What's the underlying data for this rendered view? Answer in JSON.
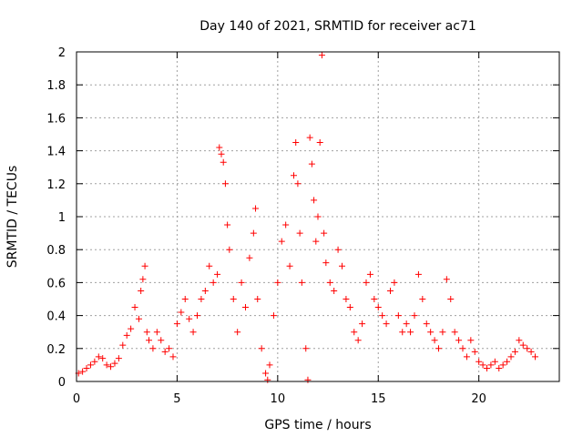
{
  "chart_data": {
    "type": "scatter",
    "title": "Day 140 of 2021, SRMTID for receiver ac71",
    "xlabel": "GPS time / hours",
    "ylabel": "SRMTID / TECUs",
    "xlim": [
      0,
      24
    ],
    "ylim": [
      0,
      2
    ],
    "xticks": [
      0,
      5,
      10,
      15,
      20
    ],
    "xtick_labels": [
      "0",
      "5",
      "10",
      "15",
      "20"
    ],
    "yticks": [
      0,
      0.2,
      0.4,
      0.6,
      0.8,
      1,
      1.2,
      1.4,
      1.6,
      1.8,
      2
    ],
    "ytick_labels": [
      "0",
      "0.2",
      "0.4",
      "0.6",
      "0.8",
      "1",
      "1.2",
      "1.4",
      "1.6",
      "1.8",
      "2"
    ],
    "grid": true,
    "marker": "+",
    "marker_color": "#ff0000",
    "series": [
      {
        "name": "SRMTID",
        "x": [
          0.1,
          0.3,
          0.5,
          0.7,
          0.9,
          1.1,
          1.3,
          1.5,
          1.7,
          1.9,
          2.1,
          2.3,
          2.5,
          2.7,
          2.9,
          3.1,
          3.2,
          3.3,
          3.4,
          3.5,
          3.6,
          3.8,
          4.0,
          4.2,
          4.4,
          4.6,
          4.8,
          5.0,
          5.2,
          5.4,
          5.6,
          5.8,
          6.0,
          6.2,
          6.4,
          6.6,
          6.8,
          7.0,
          7.1,
          7.2,
          7.3,
          7.4,
          7.5,
          7.6,
          7.8,
          8.0,
          8.2,
          8.4,
          8.6,
          8.8,
          8.9,
          9.0,
          9.2,
          9.4,
          9.5,
          9.6,
          9.8,
          10.0,
          10.2,
          10.4,
          10.6,
          10.8,
          10.9,
          11.0,
          11.1,
          11.2,
          11.4,
          11.5,
          11.6,
          11.7,
          11.8,
          11.9,
          12.0,
          12.1,
          12.2,
          12.3,
          12.4,
          12.6,
          12.8,
          13.0,
          13.2,
          13.4,
          13.6,
          13.8,
          14.0,
          14.2,
          14.4,
          14.6,
          14.8,
          15.0,
          15.2,
          15.4,
          15.6,
          15.8,
          16.0,
          16.2,
          16.4,
          16.6,
          16.8,
          17.0,
          17.2,
          17.4,
          17.6,
          17.8,
          18.0,
          18.2,
          18.4,
          18.6,
          18.8,
          19.0,
          19.2,
          19.4,
          19.6,
          19.8,
          20.0,
          20.2,
          20.4,
          20.6,
          20.8,
          21.0,
          21.2,
          21.4,
          21.6,
          21.8,
          22.0,
          22.2,
          22.4,
          22.6,
          22.8
        ],
        "y": [
          0.05,
          0.06,
          0.08,
          0.1,
          0.12,
          0.15,
          0.14,
          0.1,
          0.09,
          0.11,
          0.14,
          0.22,
          0.28,
          0.32,
          0.45,
          0.38,
          0.55,
          0.62,
          0.7,
          0.3,
          0.25,
          0.2,
          0.3,
          0.25,
          0.18,
          0.2,
          0.15,
          0.35,
          0.42,
          0.5,
          0.38,
          0.3,
          0.4,
          0.5,
          0.55,
          0.7,
          0.6,
          0.65,
          1.42,
          1.38,
          1.33,
          1.2,
          0.95,
          0.8,
          0.5,
          0.3,
          0.6,
          0.45,
          0.75,
          0.9,
          1.05,
          0.5,
          0.2,
          0.05,
          0.01,
          0.1,
          0.4,
          0.6,
          0.85,
          0.95,
          0.7,
          1.25,
          1.45,
          1.2,
          0.9,
          0.6,
          0.2,
          0.01,
          1.48,
          1.32,
          1.1,
          0.85,
          1.0,
          1.45,
          1.98,
          0.9,
          0.72,
          0.6,
          0.55,
          0.8,
          0.7,
          0.5,
          0.45,
          0.3,
          0.25,
          0.35,
          0.6,
          0.65,
          0.5,
          0.45,
          0.4,
          0.35,
          0.55,
          0.6,
          0.4,
          0.3,
          0.35,
          0.3,
          0.4,
          0.65,
          0.5,
          0.35,
          0.3,
          0.25,
          0.2,
          0.3,
          0.62,
          0.5,
          0.3,
          0.25,
          0.2,
          0.15,
          0.25,
          0.18,
          0.12,
          0.1,
          0.08,
          0.1,
          0.12,
          0.08,
          0.1,
          0.12,
          0.15,
          0.18,
          0.25,
          0.22,
          0.2,
          0.18,
          0.15
        ]
      }
    ]
  }
}
